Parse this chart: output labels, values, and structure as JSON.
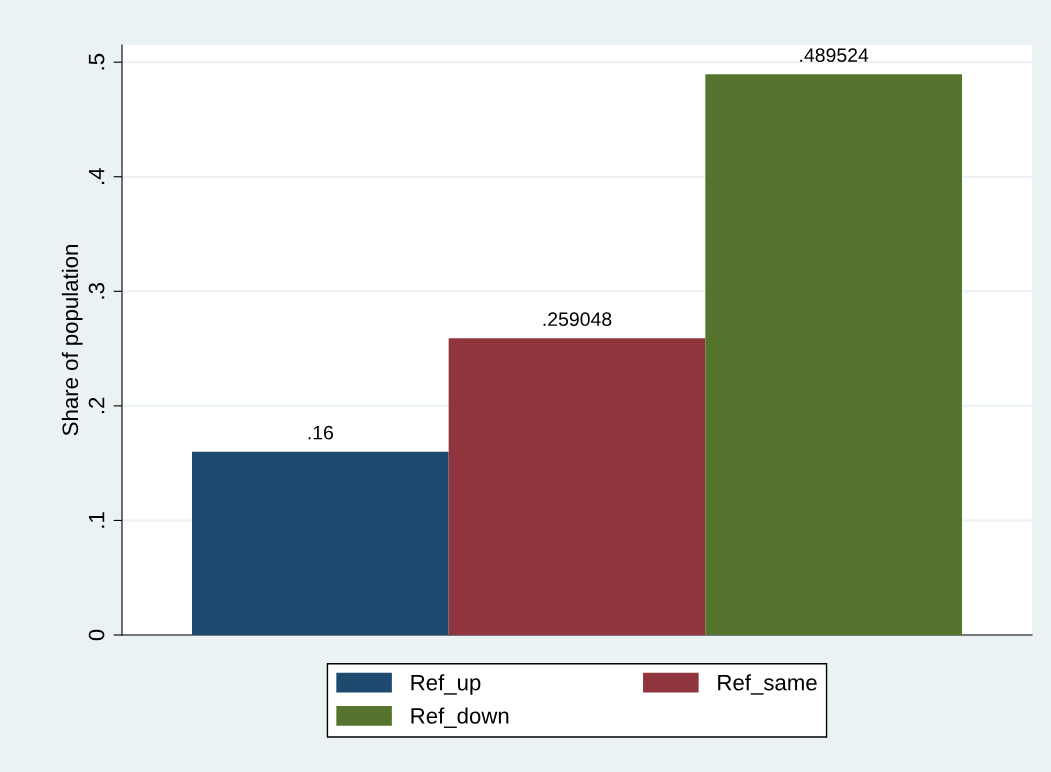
{
  "chart_data": {
    "type": "bar",
    "ylabel": "Share of population",
    "categories": [
      null
    ],
    "series": [
      {
        "name": "Ref_up",
        "color": "#1f4a70",
        "values": [
          0.16
        ],
        "value_labels": [
          ".16"
        ]
      },
      {
        "name": "Ref_same",
        "color": "#90353e",
        "values": [
          0.259048
        ],
        "value_labels": [
          ".259048"
        ]
      },
      {
        "name": "Ref_down",
        "color": "#55752f",
        "values": [
          0.489524
        ],
        "value_labels": [
          ".489524"
        ]
      }
    ],
    "ylim": [
      0,
      0.515
    ],
    "yticks": [
      0,
      {
        "value": 0.1,
        "label": ".1"
      },
      {
        "value": 0.2,
        "label": ".2"
      },
      {
        "value": 0.3,
        "label": ".3"
      },
      {
        "value": 0.4,
        "label": ".4"
      },
      {
        "value": 0.5,
        "label": ".5"
      }
    ],
    "grid": "y",
    "legend": "bottom"
  }
}
